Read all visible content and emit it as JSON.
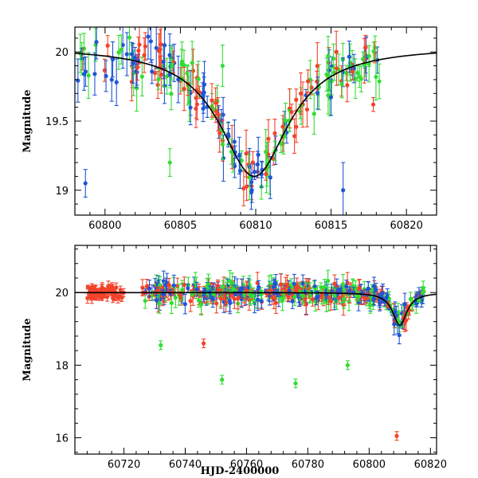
{
  "chart_data": [
    {
      "type": "scatter",
      "panel": "top",
      "title": "",
      "xlabel": "",
      "ylabel": "Magnitude",
      "xlim": [
        60798,
        60822
      ],
      "ylim": [
        20.18,
        18.82
      ],
      "y_inverted": true,
      "xticks": [
        60800,
        60805,
        60810,
        60815,
        60820
      ],
      "yticks": [
        19,
        19.5,
        20
      ],
      "ytick_labels": [
        "19",
        "19.5",
        "20"
      ],
      "model": {
        "baseline": 20.04,
        "peak_time": 60809.9,
        "peak_mag": 19.1,
        "width": 2.8
      },
      "colors": {
        "blue": "#1f55d6",
        "green": "#33dd33",
        "red": "#f2432a"
      }
    },
    {
      "type": "scatter",
      "panel": "bottom",
      "title": "",
      "xlabel": "HJD-2400000",
      "ylabel": "Magnitude",
      "xlim": [
        60704,
        60822
      ],
      "ylim": [
        21.3,
        15.55
      ],
      "y_inverted": true,
      "xticks": [
        60720,
        60740,
        60760,
        60780,
        60800,
        60820
      ],
      "yticks": [
        16,
        18,
        20
      ],
      "ytick_labels": [
        "16",
        "18",
        "20"
      ],
      "model": {
        "baseline": 20.0,
        "peak_time": 60810.0,
        "peak_mag": 19.1,
        "width": 2.8
      },
      "colors": {
        "blue": "#1f55d6",
        "green": "#33dd33",
        "red": "#f2432a"
      },
      "notable_points": [
        {
          "series": "red",
          "x": 60809,
          "y": 16.05
        },
        {
          "series": "green",
          "x": 60752,
          "y": 17.6
        },
        {
          "series": "green",
          "x": 60776,
          "y": 17.5
        },
        {
          "series": "green",
          "x": 60732,
          "y": 18.55
        },
        {
          "series": "red",
          "x": 60746,
          "y": 18.6
        },
        {
          "series": "green",
          "x": 60793,
          "y": 18.0
        }
      ]
    }
  ]
}
